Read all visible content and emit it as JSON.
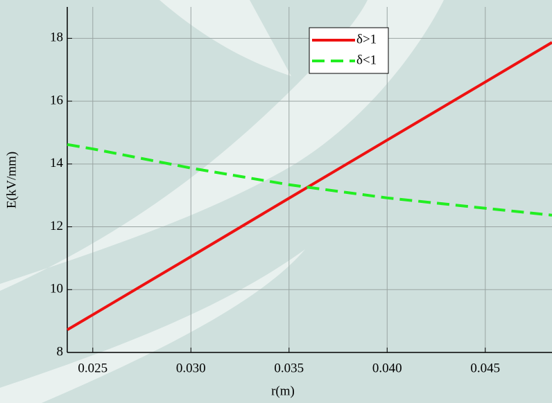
{
  "chart_data": {
    "type": "line",
    "x_label": "r(m)",
    "y_label": "E(kV/mm)",
    "x": [
      0.0237,
      0.025,
      0.03,
      0.035,
      0.04,
      0.045,
      0.0484
    ],
    "series": [
      {
        "name": "δ>1",
        "color": "#ee1111",
        "dash": false,
        "values": [
          8.72,
          9.2,
          11.05,
          12.91,
          14.76,
          16.61,
          17.87
        ]
      },
      {
        "name": "δ<1",
        "color": "#22ee22",
        "dash": true,
        "values": [
          14.62,
          14.48,
          13.87,
          13.34,
          12.92,
          12.59,
          12.37
        ]
      }
    ],
    "xlim": [
      0.0237,
      0.0484
    ],
    "xticks": [
      0.025,
      {
        "value": 0.03,
        "label": "0.030"
      },
      0.035,
      {
        "value": 0.04,
        "label": "0.040"
      },
      0.045
    ],
    "ylim": [
      8,
      19
    ],
    "yticks": [
      8,
      10,
      12,
      14,
      16,
      18
    ],
    "grid": true,
    "legend": "upper center"
  }
}
